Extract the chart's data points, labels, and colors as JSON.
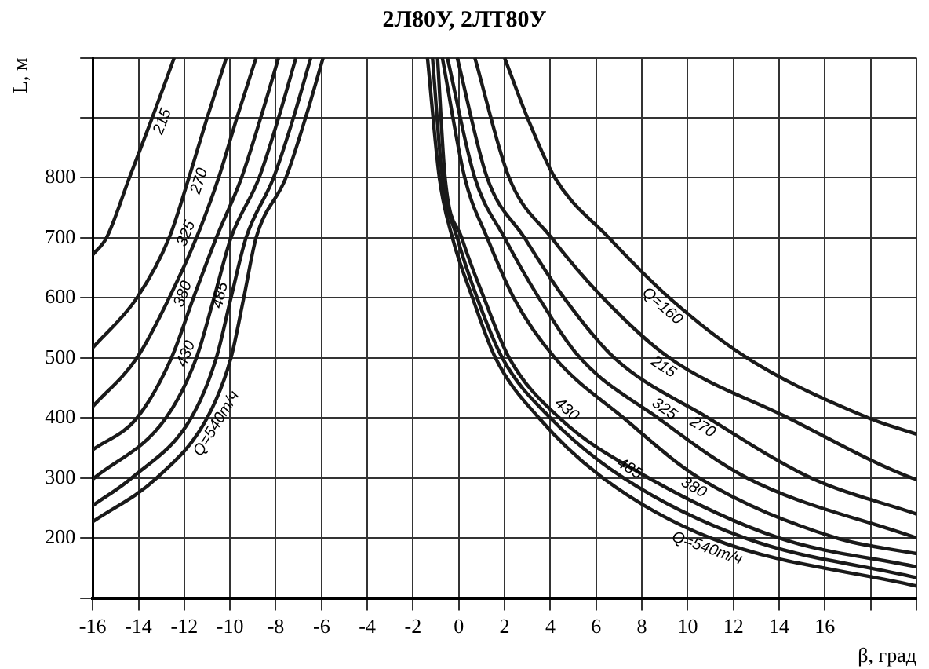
{
  "chart_data": {
    "type": "line",
    "title": "2Л80У, 2ЛТ80У",
    "xlabel": "β, град",
    "ylabel": "L, м",
    "xlim": [
      -16,
      20
    ],
    "xticks": [
      -16,
      -14,
      -12,
      -10,
      -8,
      -6,
      -4,
      -2,
      0,
      2,
      4,
      6,
      8,
      10,
      12,
      14,
      16,
      {
        "value": 18,
        "label": null
      },
      {
        "value": 20,
        "label": null
      }
    ],
    "ylim": [
      100,
      1000
    ],
    "yticks": [
      {
        "value": 100,
        "label": null
      },
      200,
      300,
      400,
      500,
      600,
      700,
      800,
      {
        "value": 900,
        "label": null
      },
      {
        "value": 1000,
        "label": null
      }
    ],
    "grid": true,
    "legend": false,
    "marker": "none",
    "line_style": "solid",
    "series": [
      {
        "color": "#1a1a1a",
        "x": [
          2.0,
          3.0,
          4.2,
          6.56,
          9.2,
          12.6,
          17.9,
          20
        ],
        "values": [
          1000,
          900,
          800,
          700,
          600,
          500,
          400,
          373
        ]
      },
      {
        "color": "#1a1a1a",
        "x": [
          0.7,
          2.2,
          4.05,
          6.3,
          9.2,
          14.4,
          19.8,
          20
        ],
        "values": [
          1000,
          800,
          700,
          600,
          500,
          400,
          300,
          298
        ]
      },
      {
        "color": "#1a1a1a",
        "x": [
          -0.07,
          1.24,
          2.87,
          4.6,
          6.8,
          10.9,
          15.4,
          20
        ],
        "values": [
          1000,
          800,
          700,
          600,
          500,
          400,
          300,
          240
        ]
      },
      {
        "color": "#1a1a1a",
        "x": [
          -0.5,
          0.7,
          2.0,
          3.5,
          5.3,
          8.7,
          12.6,
          20
        ],
        "values": [
          1000,
          800,
          700,
          600,
          500,
          400,
          300,
          200
        ]
      },
      {
        "color": "#1a1a1a",
        "x": [
          -0.72,
          0.26,
          1.24,
          2.4,
          4.2,
          7.2,
          10.5,
          16.5,
          20
        ],
        "values": [
          1000,
          800,
          700,
          600,
          500,
          400,
          300,
          200,
          174
        ]
      },
      {
        "color": "#1a1a1a",
        "x": [
          -0.93,
          -0.6,
          0.13,
          1.1,
          2.2,
          4.4,
          8.3,
          14.0,
          20
        ],
        "values": [
          1000,
          800,
          700,
          600,
          500,
          400,
          300,
          200,
          152
        ]
      },
      {
        "color": "#1a1a1a",
        "x": [
          -1.15,
          -0.72,
          -0.07,
          0.8,
          1.9,
          4.0,
          7.2,
          12.5,
          20
        ],
        "values": [
          1000,
          800,
          700,
          600,
          500,
          400,
          300,
          200,
          134
        ]
      },
      {
        "color": "#1a1a1a",
        "x": [
          -1.37,
          -0.85,
          -0.28,
          0.6,
          1.6,
          3.5,
          6.3,
          11.0,
          20
        ],
        "values": [
          1000,
          800,
          700,
          600,
          500,
          400,
          300,
          200,
          120
        ]
      },
      {
        "color": "#1a1a1a",
        "x": [
          -16,
          -15.4,
          -14.4,
          -13.4,
          -12.44
        ],
        "values": [
          672,
          700,
          800,
          900,
          1000
        ]
      },
      {
        "color": "#1a1a1a",
        "x": [
          -16,
          -14.07,
          -12.66,
          -11.8,
          -11.0,
          -10.16
        ],
        "values": [
          517,
          600,
          700,
          800,
          900,
          1000
        ]
      },
      {
        "color": "#1a1a1a",
        "x": [
          -16,
          -14.07,
          -12.66,
          -11.47,
          -10.5,
          -9.7,
          -8.86
        ],
        "values": [
          419,
          500,
          600,
          700,
          800,
          900,
          1000
        ]
      },
      {
        "color": "#1a1a1a",
        "x": [
          -16,
          -14.07,
          -12.56,
          -11.6,
          -10.6,
          -9.5,
          -8.66,
          -7.88
        ],
        "values": [
          347,
          400,
          500,
          600,
          700,
          800,
          900,
          1000
        ]
      },
      {
        "color": "#1a1a1a",
        "x": [
          -16,
          -12.8,
          -11.47,
          -10.7,
          -9.96,
          -8.73,
          -7.88,
          -7.12
        ],
        "values": [
          298,
          400,
          500,
          600,
          700,
          800,
          900,
          1000
        ]
      },
      {
        "color": "#1a1a1a",
        "x": [
          -16,
          -14.3,
          -11.7,
          -10.6,
          -9.96,
          -9.3,
          -8.1,
          -7.23,
          -6.47
        ],
        "values": [
          254,
          300,
          400,
          500,
          600,
          700,
          800,
          900,
          1000
        ]
      },
      {
        "color": "#1a1a1a",
        "x": [
          -16,
          -13.2,
          -11.0,
          -9.96,
          -9.4,
          -8.86,
          -7.56,
          -6.7,
          -5.93
        ],
        "values": [
          227,
          300,
          400,
          500,
          600,
          700,
          800,
          900,
          1000
        ]
      }
    ],
    "annotations": [
      {
        "text": "Q=160",
        "x": 9.2,
        "y": 600
      },
      {
        "text": "215",
        "x": 9.2,
        "y": 500
      },
      {
        "text": "270",
        "x": 10.9,
        "y": 400
      },
      {
        "text": "325",
        "x": 8.7,
        "y": 400
      },
      {
        "text": "380",
        "x": 10.5,
        "y": 300
      },
      {
        "text": "430",
        "x": 4.4,
        "y": 400
      },
      {
        "text": "485",
        "x": 7.2,
        "y": 300
      },
      {
        "text": "Q=540т/ч",
        "x": 11.0,
        "y": 200
      },
      {
        "text": "215",
        "x": -13.4,
        "y": 900
      },
      {
        "text": "270",
        "x": -11.8,
        "y": 800
      },
      {
        "text": "325",
        "x": -11.47,
        "y": 700
      },
      {
        "text": "380",
        "x": -11.6,
        "y": 600
      },
      {
        "text": "430",
        "x": -11.47,
        "y": 500
      },
      {
        "text": "485",
        "x": -9.96,
        "y": 600
      },
      {
        "text": "Q=540т/ч",
        "x": -11.0,
        "y": 400
      }
    ]
  }
}
